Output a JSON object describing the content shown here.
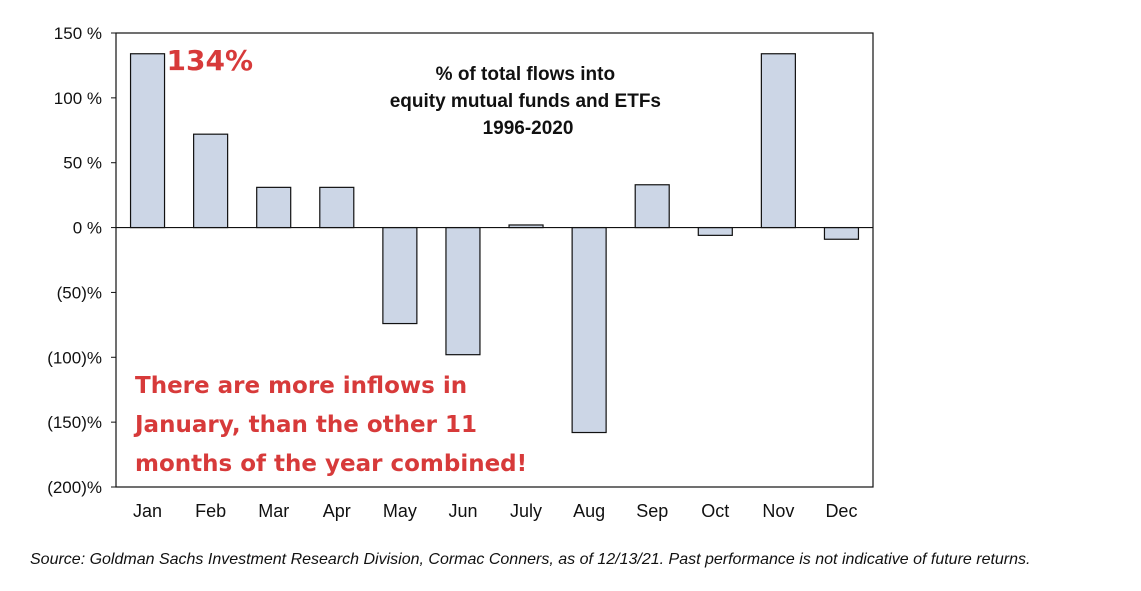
{
  "chart_data": {
    "type": "bar",
    "title_lines": [
      "% of total flows into",
      "equity mutual funds and ETFs",
      "1996-2020"
    ],
    "categories": [
      "Jan",
      "Feb",
      "Mar",
      "Apr",
      "May",
      "Jun",
      "July",
      "Aug",
      "Sep",
      "Oct",
      "Nov",
      "Dec"
    ],
    "values": [
      134,
      72,
      31,
      31,
      -74,
      -98,
      2,
      -158,
      33,
      -6,
      134,
      -9
    ],
    "ylim": [
      -200,
      150
    ],
    "y_ticks": [
      150,
      100,
      50,
      0,
      -50,
      -100,
      -150,
      -200
    ],
    "y_tick_labels": [
      "150 %",
      "100 %",
      "50 %",
      "0 %",
      "(50)%",
      "(100)%",
      "(150)%",
      "(200)%"
    ],
    "xlabel": "",
    "ylabel": "",
    "grid": false,
    "bar_color": "#ccd6e6",
    "bar_edge_color": "#111111",
    "data_label": {
      "category": "Jan",
      "text": "134%"
    },
    "annotation_lines": [
      "There are more inflows in",
      "January, than the other 11",
      "months of the year combined!"
    ],
    "annotation_color": "#d73a3a"
  },
  "source_note": "Source: Goldman Sachs Investment Research Division, Cormac Conners, as of 12/13/21. Past performance is not indicative of future returns."
}
